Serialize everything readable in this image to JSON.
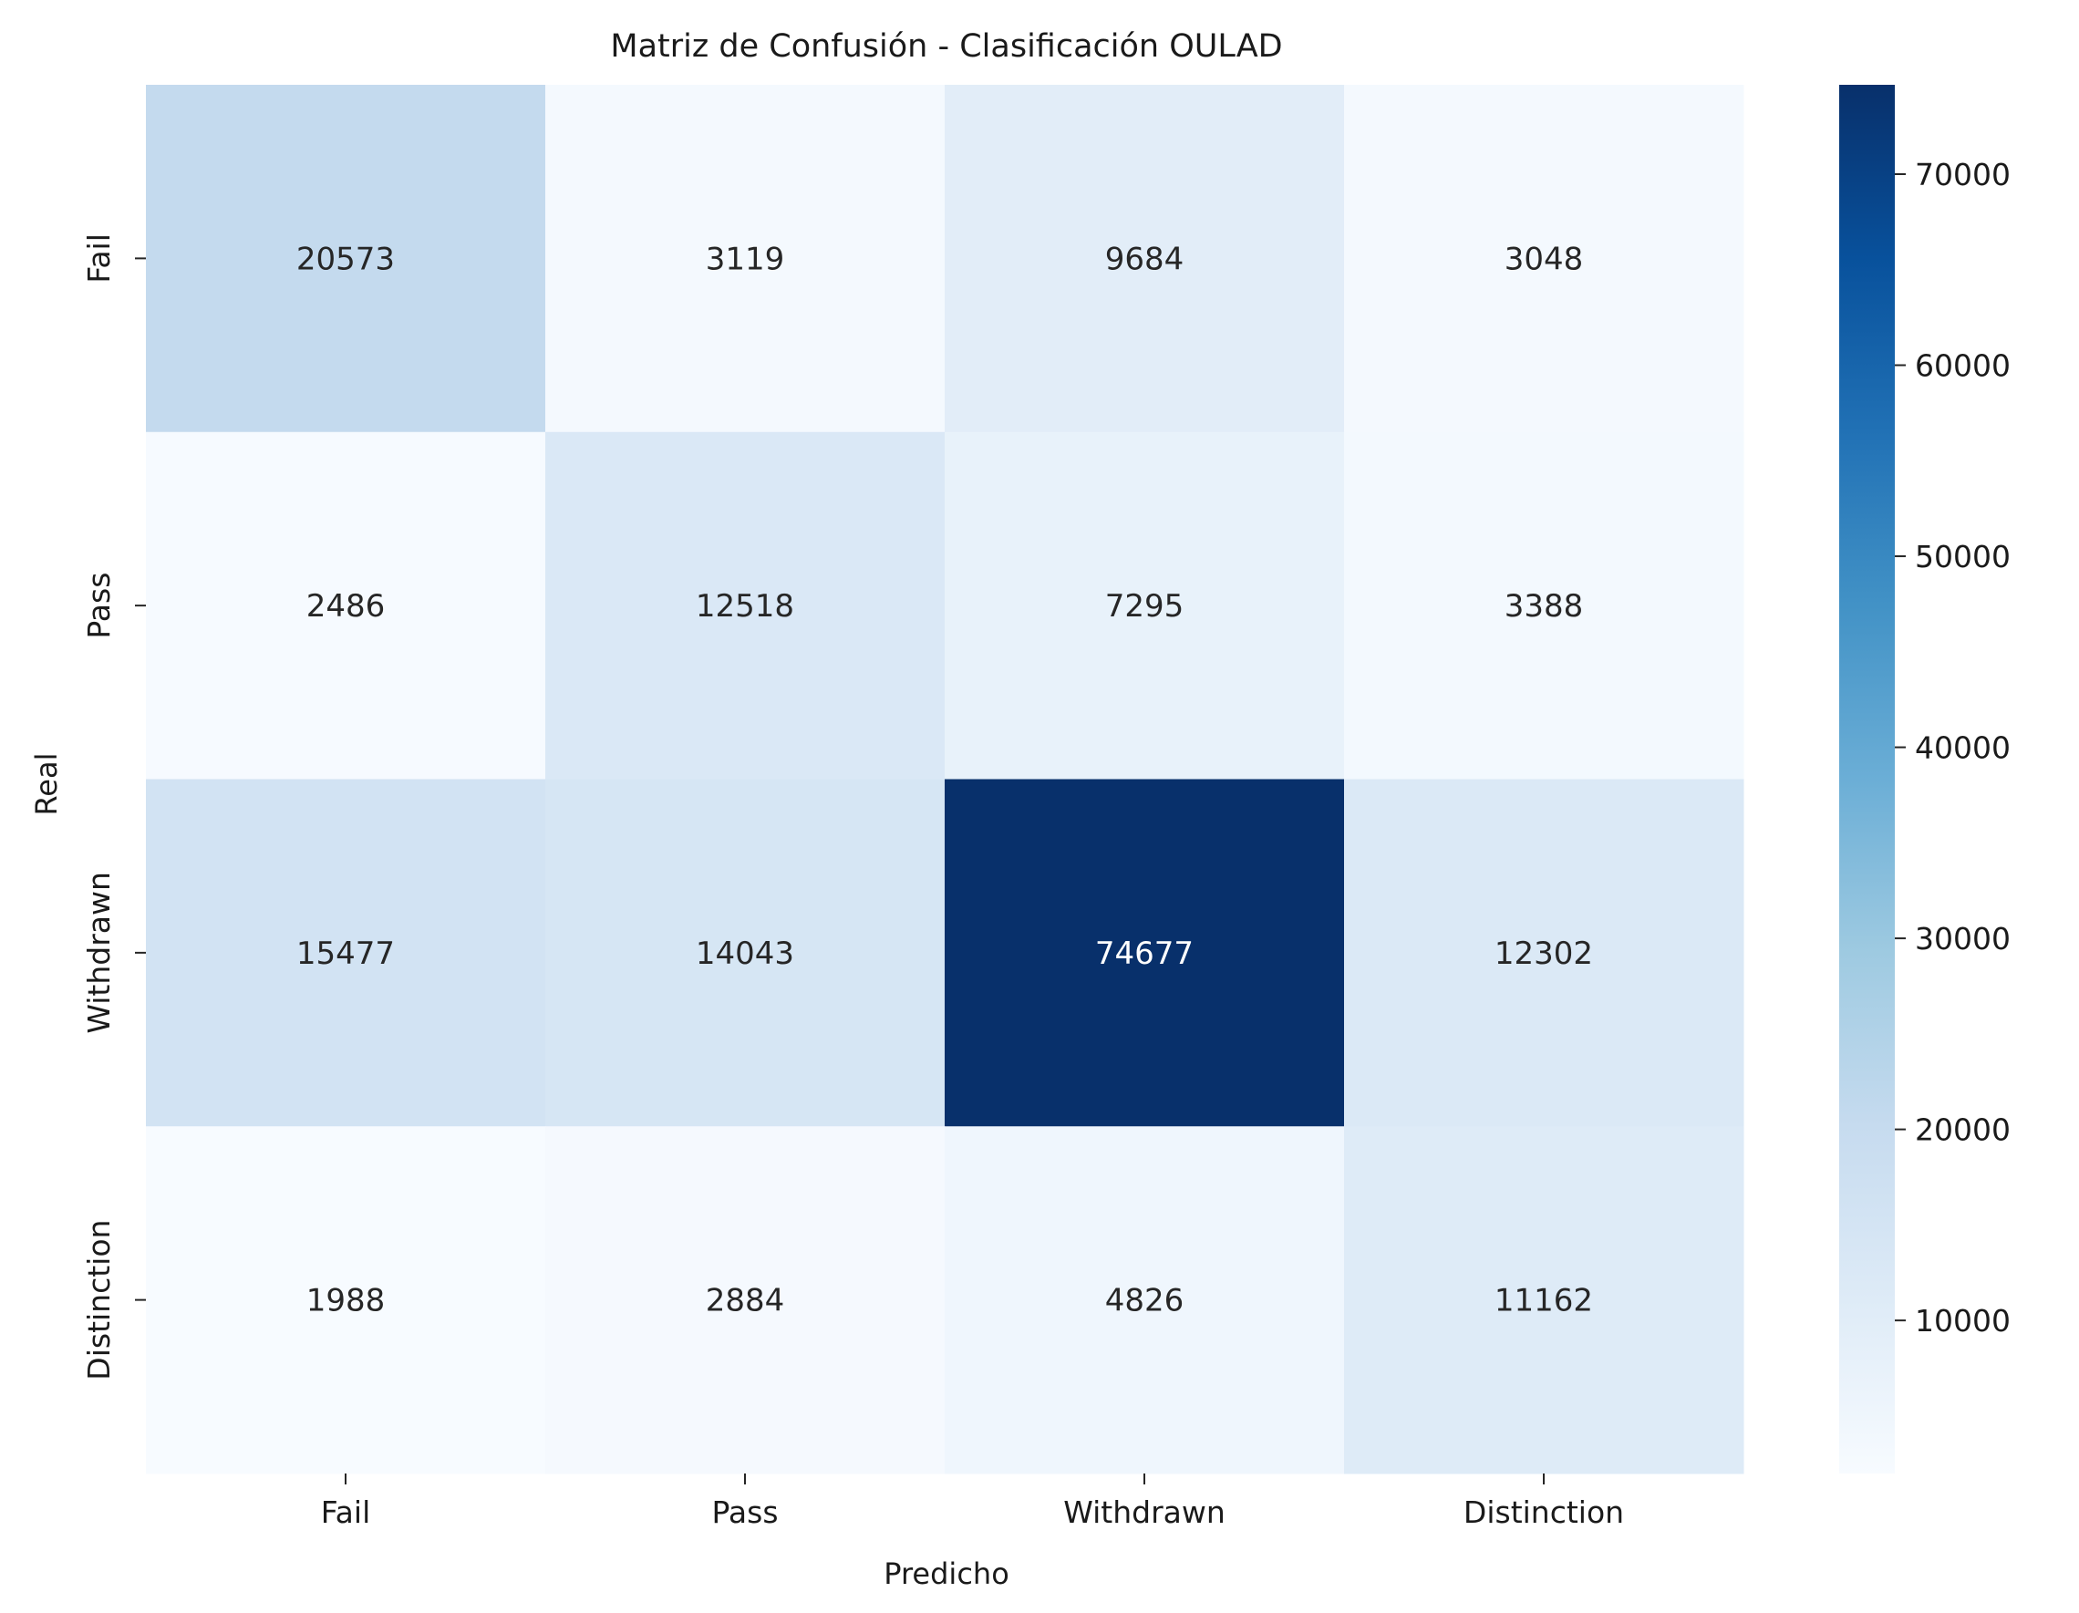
{
  "chart_data": {
    "type": "heatmap",
    "title": "Matriz de Confusión - Clasificación OULAD",
    "xlabel": "Predicho",
    "ylabel": "Real",
    "x_categories": [
      "Fail",
      "Pass",
      "Withdrawn",
      "Distinction"
    ],
    "y_categories": [
      "Fail",
      "Pass",
      "Withdrawn",
      "Distinction"
    ],
    "values": [
      [
        20573,
        3119,
        9684,
        3048
      ],
      [
        2486,
        12518,
        7295,
        3388
      ],
      [
        15477,
        14043,
        74677,
        12302
      ],
      [
        1988,
        2884,
        4826,
        11162
      ]
    ],
    "colormap": "Blues",
    "color_range": [
      1988,
      74677
    ],
    "colorbar_ticks": [
      10000,
      20000,
      30000,
      40000,
      50000,
      60000,
      70000
    ],
    "colorbar_tick_labels": [
      "10000",
      "20000",
      "30000",
      "40000",
      "50000",
      "60000",
      "70000"
    ]
  }
}
